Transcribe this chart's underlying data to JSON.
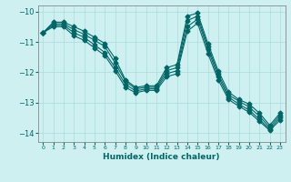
{
  "xlabel": "Humidex (Indice chaleur)",
  "ylabel": "",
  "bg_color": "#cef0f0",
  "line_color": "#006666",
  "xlim": [
    -0.5,
    23.5
  ],
  "ylim": [
    -14.3,
    -9.8
  ],
  "yticks": [
    -14,
    -13,
    -12,
    -11,
    -10
  ],
  "xticks": [
    0,
    1,
    2,
    3,
    4,
    5,
    6,
    7,
    8,
    9,
    10,
    11,
    12,
    13,
    14,
    15,
    16,
    17,
    18,
    19,
    20,
    21,
    22,
    23
  ],
  "lines": [
    {
      "x": [
        0,
        1,
        2,
        3,
        4,
        5,
        6,
        7,
        8,
        9,
        10,
        11,
        12,
        13,
        14,
        15,
        16,
        17,
        18,
        19,
        20,
        21,
        22,
        23
      ],
      "y": [
        -10.7,
        -10.35,
        -10.35,
        -10.5,
        -10.65,
        -10.85,
        -11.05,
        -11.55,
        -12.25,
        -12.5,
        -12.45,
        -12.45,
        -11.85,
        -11.75,
        -10.15,
        -10.05,
        -11.05,
        -11.95,
        -12.65,
        -12.9,
        -13.05,
        -13.35,
        -13.75,
        -13.35
      ]
    },
    {
      "x": [
        0,
        1,
        2,
        3,
        4,
        5,
        6,
        7,
        8,
        9,
        10,
        11,
        12,
        13,
        14,
        15,
        16,
        17,
        18,
        19,
        20,
        21,
        22,
        23
      ],
      "y": [
        -10.7,
        -10.4,
        -10.4,
        -10.6,
        -10.75,
        -10.95,
        -11.15,
        -11.7,
        -12.3,
        -12.55,
        -12.5,
        -12.5,
        -11.95,
        -11.85,
        -10.3,
        -10.15,
        -11.15,
        -12.05,
        -12.75,
        -12.95,
        -13.15,
        -13.45,
        -13.82,
        -13.42
      ]
    },
    {
      "x": [
        0,
        1,
        2,
        3,
        4,
        5,
        6,
        7,
        8,
        9,
        10,
        11,
        12,
        13,
        14,
        15,
        16,
        17,
        18,
        19,
        20,
        21,
        22,
        23
      ],
      "y": [
        -10.7,
        -10.45,
        -10.45,
        -10.7,
        -10.85,
        -11.1,
        -11.35,
        -11.85,
        -12.4,
        -12.62,
        -12.55,
        -12.55,
        -12.05,
        -11.95,
        -10.5,
        -10.25,
        -11.25,
        -12.15,
        -12.82,
        -13.05,
        -13.25,
        -13.55,
        -13.88,
        -13.5
      ]
    },
    {
      "x": [
        0,
        1,
        2,
        3,
        4,
        5,
        6,
        7,
        8,
        9,
        10,
        11,
        12,
        13,
        14,
        15,
        16,
        17,
        18,
        19,
        20,
        21,
        22,
        23
      ],
      "y": [
        -10.7,
        -10.5,
        -10.5,
        -10.8,
        -10.95,
        -11.2,
        -11.45,
        -11.95,
        -12.5,
        -12.68,
        -12.6,
        -12.6,
        -12.15,
        -12.05,
        -10.65,
        -10.38,
        -11.38,
        -12.25,
        -12.9,
        -13.12,
        -13.32,
        -13.62,
        -13.92,
        -13.58
      ]
    }
  ],
  "marker": "D",
  "markersize": 2.5,
  "linewidth": 0.8
}
